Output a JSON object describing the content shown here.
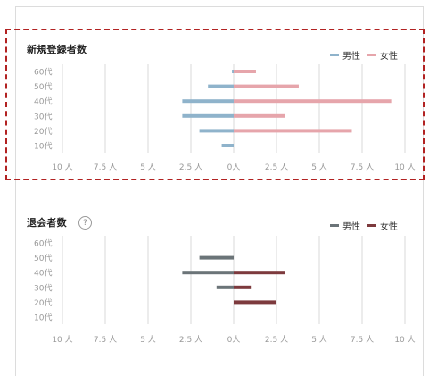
{
  "charts": [
    {
      "title": "新規登録者数",
      "has_help_icon": false,
      "legend": [
        {
          "label": "男性",
          "color": "#8fb3cb"
        },
        {
          "label": "女性",
          "color": "#e6a5ab"
        }
      ]
    },
    {
      "title": "退会者数",
      "has_help_icon": true,
      "help_icon_label": "?",
      "legend": [
        {
          "label": "男性",
          "color": "#6b7478"
        },
        {
          "label": "女性",
          "color": "#7d3a3d"
        }
      ]
    }
  ],
  "chart_data": [
    {
      "type": "bar",
      "orientation": "horizontal-diverging",
      "title": "新規登録者数",
      "categories": [
        "60代",
        "50代",
        "40代",
        "30代",
        "20代",
        "10代"
      ],
      "x_tick_labels": [
        "10 人",
        "7.5 人",
        "5 人",
        "2.5 人",
        "0人",
        "2.5 人",
        "5 人",
        "7.5 人",
        "10 人"
      ],
      "xlim": [
        -10,
        10
      ],
      "series": [
        {
          "name": "男性",
          "color": "#8fb3cb",
          "values": [
            0.1,
            1.5,
            3,
            3,
            2,
            0.7
          ]
        },
        {
          "name": "女性",
          "color": "#e6a5ab",
          "values": [
            1.3,
            3.8,
            9.2,
            3,
            6.9,
            0
          ]
        }
      ],
      "grid": true
    },
    {
      "type": "bar",
      "orientation": "horizontal-diverging",
      "title": "退会者数",
      "categories": [
        "60代",
        "50代",
        "40代",
        "30代",
        "20代",
        "10代"
      ],
      "x_tick_labels": [
        "10 人",
        "7.5 人",
        "5 人",
        "2.5 人",
        "0人",
        "2.5 人",
        "5 人",
        "7.5 人",
        "10 人"
      ],
      "xlim": [
        -10,
        10
      ],
      "series": [
        {
          "name": "男性",
          "color": "#6b7478",
          "values": [
            0,
            2,
            3,
            1,
            0,
            0
          ]
        },
        {
          "name": "女性",
          "color": "#7d3a3d",
          "values": [
            0,
            0,
            3,
            1,
            2.5,
            0
          ]
        }
      ],
      "grid": true
    }
  ]
}
